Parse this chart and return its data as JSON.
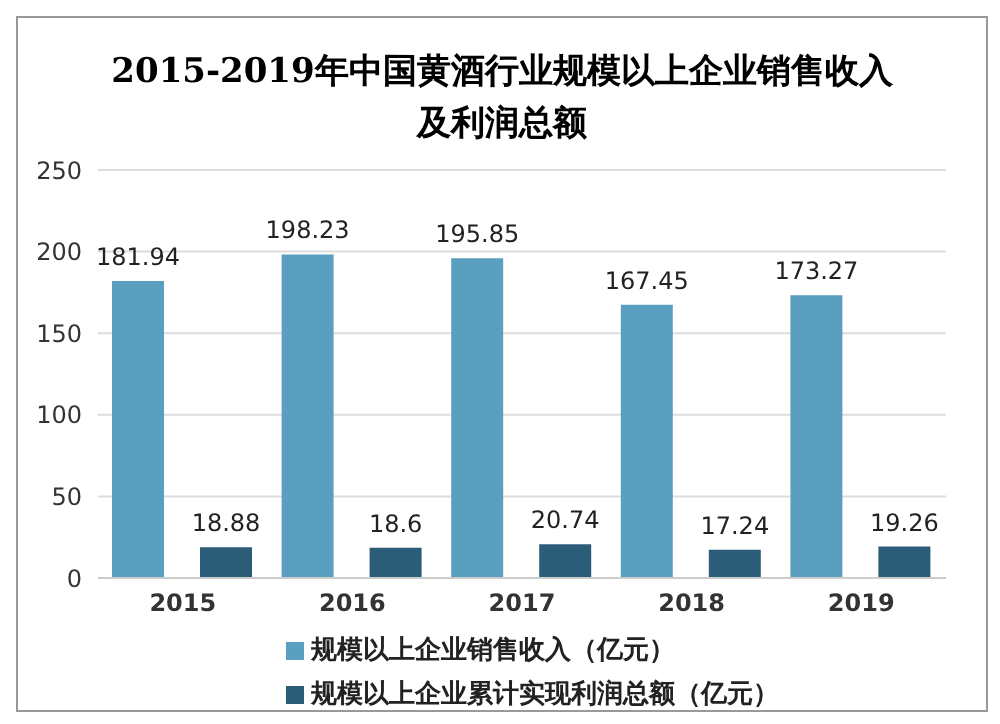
{
  "chart_data": {
    "type": "bar",
    "title": "2015-2019年中国黄酒行业规模以上企业销售收入及利润总额",
    "categories": [
      "2015",
      "2016",
      "2017",
      "2018",
      "2019"
    ],
    "series": [
      {
        "name": "规模以上企业销售收入（亿元）",
        "color": "#5a9fc0",
        "values": [
          181.94,
          198.23,
          195.85,
          167.45,
          173.27
        ]
      },
      {
        "name": "规模以上企业累计实现利润总额（亿元）",
        "color": "#2c5d78",
        "values": [
          18.88,
          18.6,
          20.74,
          17.24,
          19.26
        ]
      }
    ],
    "ylim": [
      0,
      250
    ],
    "yticks": [
      0,
      50,
      100,
      150,
      200,
      250
    ],
    "grid": "y",
    "legend": "bottom",
    "data_labels": true
  }
}
